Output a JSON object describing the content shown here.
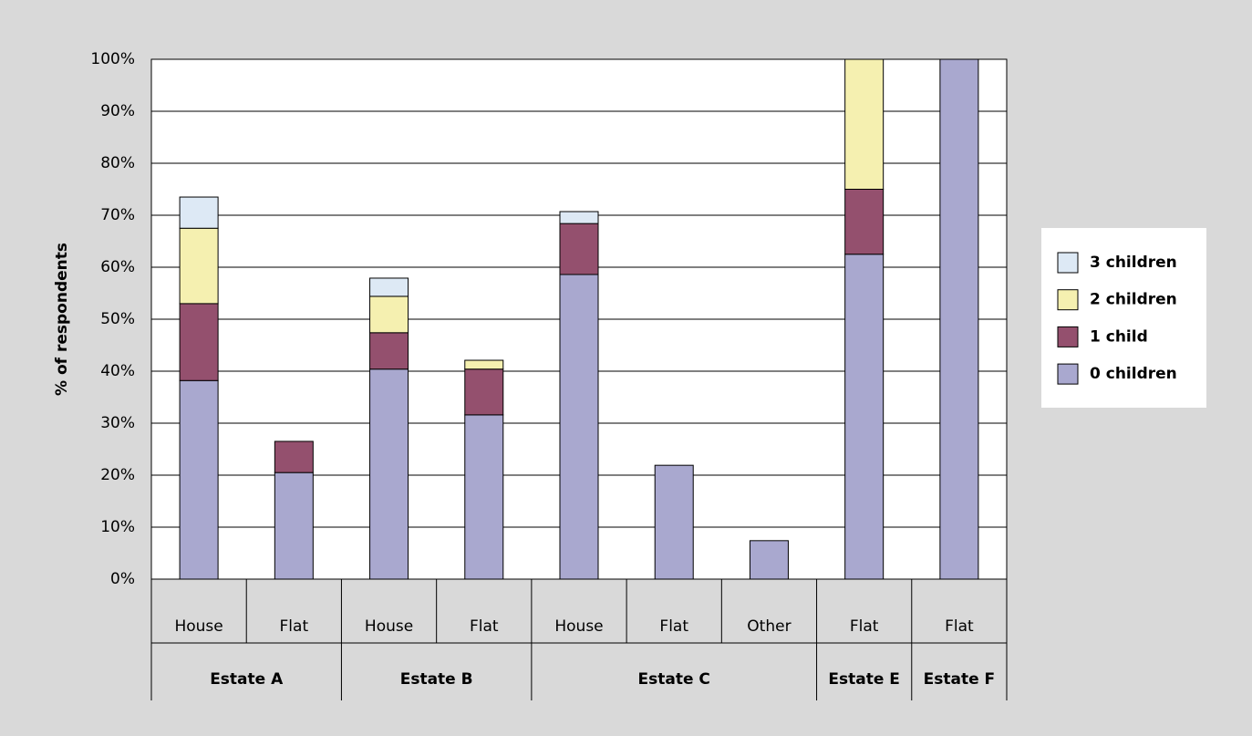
{
  "chart_data": {
    "type": "stacked_bar",
    "y_label": "% of respondents",
    "groups": [
      {
        "label": "Estate A",
        "categories": [
          "House",
          "Flat"
        ]
      },
      {
        "label": "Estate B",
        "categories": [
          "House",
          "Flat"
        ]
      },
      {
        "label": "Estate C",
        "categories": [
          "House",
          "Flat",
          "Other"
        ]
      },
      {
        "label": "Estate E",
        "categories": [
          "Flat"
        ]
      },
      {
        "label": "Estate F",
        "categories": [
          "Flat"
        ]
      }
    ],
    "series": [
      {
        "name": "0 children",
        "color": "#a9a8cf",
        "values": [
          38.2,
          20.5,
          40.4,
          31.6,
          58.6,
          21.9,
          7.4,
          62.5,
          100
        ]
      },
      {
        "name": "1 child",
        "color": "#94506e",
        "values": [
          14.8,
          6,
          7,
          8.8,
          9.8,
          0,
          0,
          12.5,
          0
        ]
      },
      {
        "name": "2 children",
        "color": "#f5f0b0",
        "values": [
          14.5,
          0,
          7,
          1.7,
          0,
          0,
          0,
          25,
          0
        ]
      },
      {
        "name": "3 children",
        "color": "#dde9f5",
        "values": [
          6,
          0,
          3.5,
          0,
          2.3,
          0,
          0,
          0,
          0
        ]
      }
    ],
    "ylim": [
      0,
      100
    ],
    "yticks": [
      {
        "value": 0,
        "label": "0%"
      },
      {
        "value": 10,
        "label": "10%"
      },
      {
        "value": 20,
        "label": "20%"
      },
      {
        "value": 30,
        "label": "30%"
      },
      {
        "value": 40,
        "label": "40%"
      },
      {
        "value": 50,
        "label": "50%"
      },
      {
        "value": 60,
        "label": "60%"
      },
      {
        "value": 70,
        "label": "70%"
      },
      {
        "value": 80,
        "label": "80%"
      },
      {
        "value": 90,
        "label": "90%"
      },
      {
        "value": 100,
        "label": "100%"
      }
    ],
    "grid": true,
    "legend": "right"
  }
}
